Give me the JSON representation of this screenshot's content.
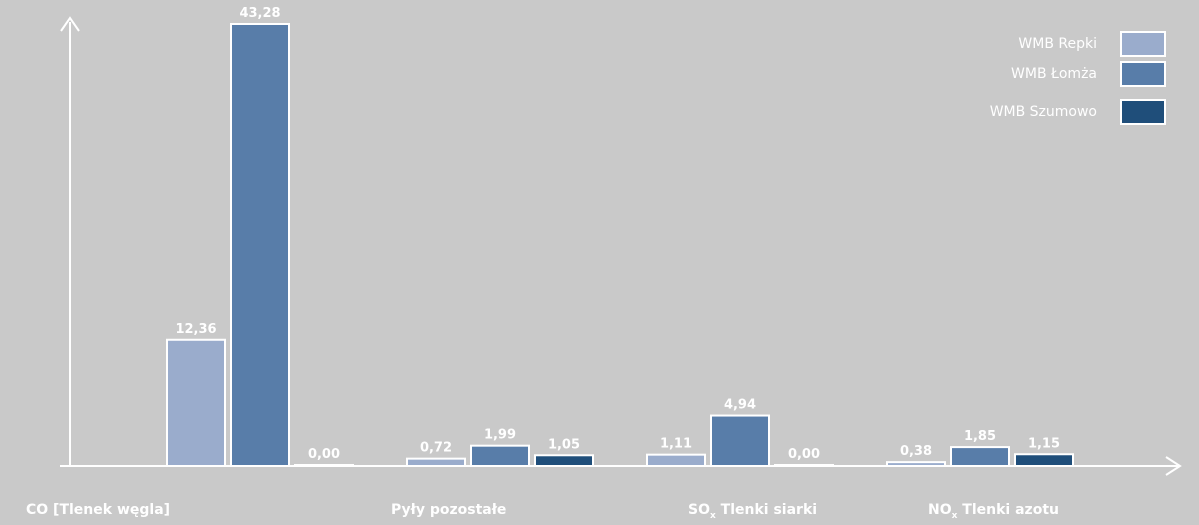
{
  "chart_data": {
    "type": "bar",
    "categories": [
      "CO [Tlenek węgla]",
      "Pyły pozostałe",
      "SOx Tlenki siarki",
      "NOx Tlenki azotu"
    ],
    "category_parts": [
      {
        "main": "CO [Tlenek węgla]",
        "sub": "",
        "rest": ""
      },
      {
        "main": "Pyły pozostałe",
        "sub": "",
        "rest": ""
      },
      {
        "main": "SO",
        "sub": "x",
        "rest": " Tlenki siarki"
      },
      {
        "main": "NO",
        "sub": "x",
        "rest": " Tlenki azotu"
      }
    ],
    "series": [
      {
        "name": "WMB Repki",
        "color": "#9aaccc",
        "values": [
          12.36,
          0.72,
          1.11,
          0.38
        ],
        "labels": [
          "12,36",
          "0,72",
          "1,11",
          "0,38"
        ]
      },
      {
        "name": "WMB Łomża",
        "color": "#587da9",
        "values": [
          43.28,
          1.99,
          4.94,
          1.85
        ],
        "labels": [
          "43,28",
          "1,99",
          "4,94",
          "1,85"
        ]
      },
      {
        "name": "WMB Szumowo",
        "color": "#1f4e7a",
        "values": [
          0.0,
          1.05,
          0.0,
          1.15
        ],
        "labels": [
          "0,00",
          "1,05",
          "0,00",
          "1,15"
        ]
      }
    ],
    "ylim": [
      0,
      43.28
    ],
    "grid": false,
    "legend_position": "top-right",
    "title": "",
    "xlabel": "",
    "ylabel": ""
  }
}
